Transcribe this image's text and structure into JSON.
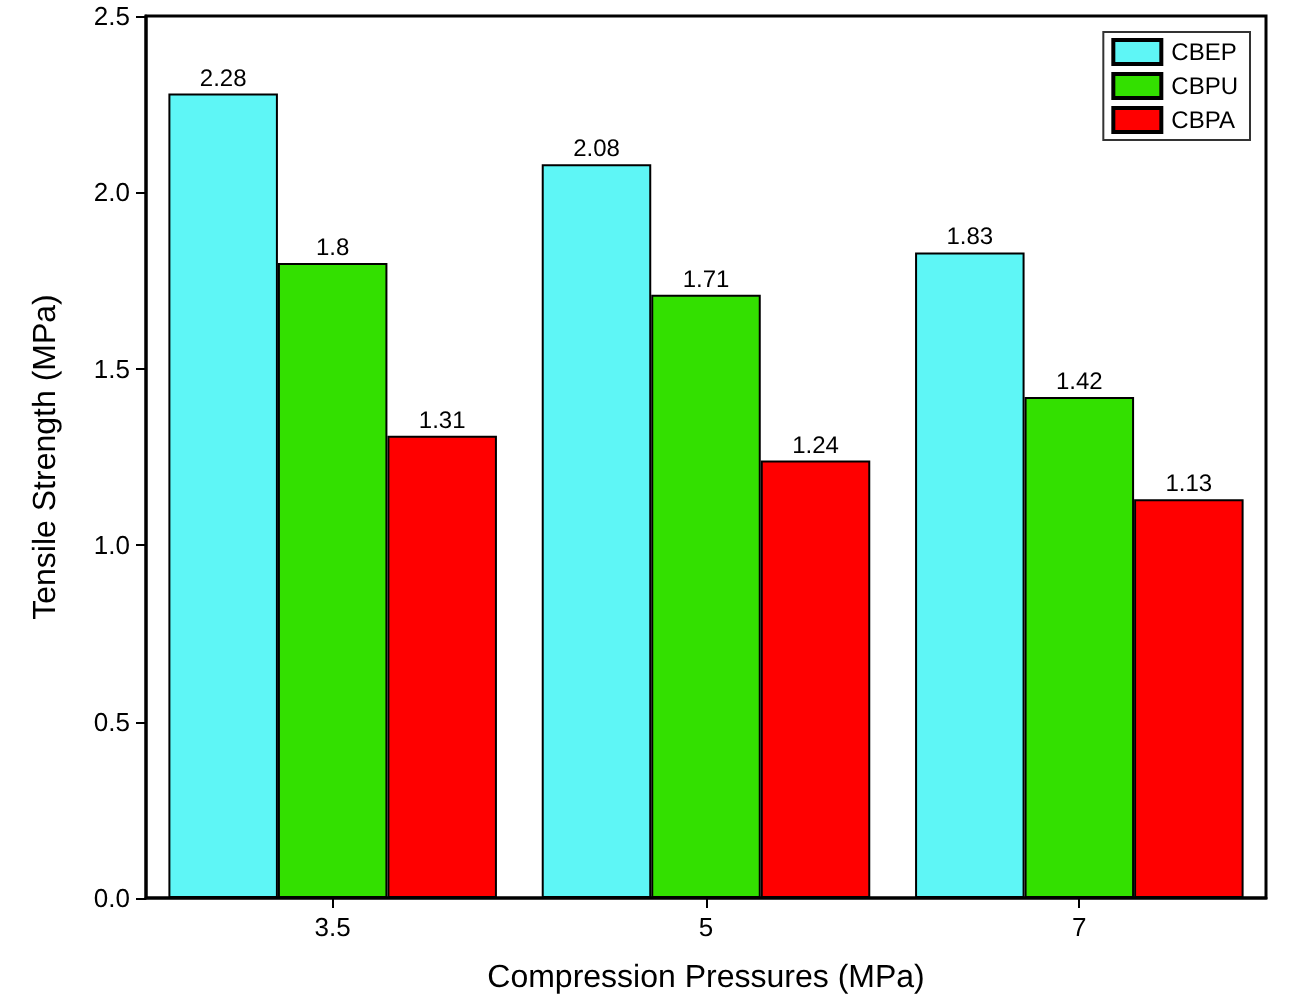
{
  "chart_data": {
    "type": "bar",
    "xlabel": "Compression Pressures (MPa)",
    "ylabel": "Tensile Strength (MPa)",
    "categories": [
      "3.5",
      "5",
      "7"
    ],
    "series": [
      {
        "name": "CBEP",
        "color": "#5ef6f6",
        "values": [
          2.28,
          2.08,
          1.83
        ]
      },
      {
        "name": "CBPU",
        "color": "#33e000",
        "values": [
          1.8,
          1.71,
          1.42
        ]
      },
      {
        "name": "CBPA",
        "color": "#ff0000",
        "values": [
          1.31,
          1.24,
          1.13
        ]
      }
    ],
    "ylim": [
      0,
      2.5
    ],
    "yticks": [
      {
        "value": 0,
        "label": "0.0"
      },
      0.5,
      {
        "value": 1,
        "label": "1.0"
      },
      1.5,
      {
        "value": 2,
        "label": "2.0"
      },
      2.5
    ],
    "data_labels": true,
    "legend": "top right",
    "grid": false
  }
}
